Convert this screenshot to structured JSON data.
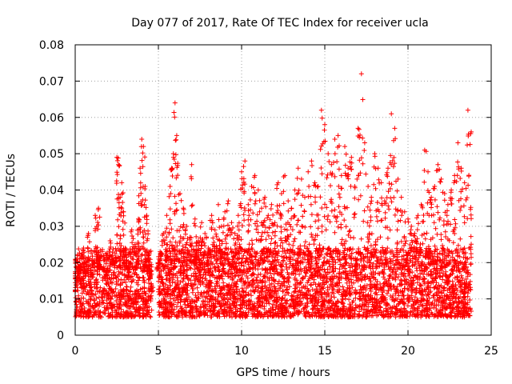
{
  "chart_data": {
    "type": "scatter",
    "title": "Day 077 of 2017, Rate Of TEC Index for receiver ucla",
    "xlabel": "GPS time / hours",
    "ylabel": "ROTI / TECUs",
    "xlim": [
      0,
      25
    ],
    "ylim": [
      0,
      0.08
    ],
    "xticks": [
      0,
      5,
      10,
      15,
      20,
      25
    ],
    "xtick_labels": [
      "0",
      "5",
      "10",
      "15",
      "20",
      "25"
    ],
    "yticks": [
      0,
      0.01,
      0.02,
      0.03,
      0.04,
      0.05,
      0.06,
      0.07,
      0.08
    ],
    "ytick_labels": [
      "0",
      "0.01",
      "0.02",
      "0.03",
      "0.04",
      "0.05",
      "0.06",
      "0.07",
      "0.08"
    ],
    "grid": true,
    "marker": "+",
    "color": "#ff0000",
    "series": [
      {
        "x": [
          0.0,
          0.1,
          0.2,
          0.3,
          0.4,
          0.5,
          0.6,
          0.8,
          1.0,
          1.2,
          1.4,
          1.5,
          1.7,
          1.9,
          2.1,
          2.3,
          2.5,
          2.6,
          2.7,
          2.8,
          2.9,
          3.0,
          3.2,
          3.4,
          3.6,
          3.8,
          3.9,
          4.0,
          4.1,
          4.2,
          4.3,
          4.4,
          4.5,
          4.6,
          5.0,
          5.1,
          5.3,
          5.5,
          5.7,
          5.8,
          5.9,
          6.0,
          6.1,
          6.3,
          6.5,
          6.7,
          6.9,
          7.0,
          7.2,
          7.4,
          7.6,
          7.8,
          8.0,
          8.2,
          8.4,
          8.6,
          8.8,
          9.0,
          9.2,
          9.4,
          9.6,
          9.8,
          10.0,
          10.2,
          10.4,
          10.6,
          10.8,
          11.0,
          11.2,
          11.4,
          11.6,
          11.8,
          12.0,
          12.2,
          12.4,
          12.6,
          12.8,
          13.0,
          13.2,
          13.4,
          13.6,
          13.8,
          14.0,
          14.2,
          14.4,
          14.6,
          14.8,
          15.0,
          15.2,
          15.4,
          15.6,
          15.8,
          16.0,
          16.2,
          16.4,
          16.6,
          16.8,
          17.0,
          17.2,
          17.4,
          17.6,
          17.8,
          18.0,
          18.2,
          18.4,
          18.6,
          18.8,
          19.0,
          19.2,
          19.4,
          19.6,
          19.8,
          20.0,
          20.2,
          20.4,
          20.6,
          20.8,
          21.0,
          21.2,
          21.4,
          21.6,
          21.8,
          22.0,
          22.2,
          22.4,
          22.6,
          22.8,
          23.0,
          23.2,
          23.4,
          23.6,
          23.8
        ],
        "y": [
          0.012,
          0.021,
          0.015,
          0.019,
          0.013,
          0.024,
          0.017,
          0.028,
          0.016,
          0.033,
          0.035,
          0.022,
          0.018,
          0.014,
          0.026,
          0.021,
          0.049,
          0.047,
          0.038,
          0.042,
          0.034,
          0.024,
          0.019,
          0.029,
          0.025,
          0.032,
          0.046,
          0.054,
          0.052,
          0.041,
          0.033,
          0.022,
          0.016,
          0.012,
          0.02,
          0.023,
          0.028,
          0.033,
          0.041,
          0.046,
          0.05,
          0.064,
          0.055,
          0.039,
          0.035,
          0.03,
          0.027,
          0.047,
          0.032,
          0.026,
          0.031,
          0.028,
          0.024,
          0.033,
          0.029,
          0.036,
          0.03,
          0.034,
          0.037,
          0.031,
          0.028,
          0.033,
          0.045,
          0.048,
          0.036,
          0.041,
          0.044,
          0.04,
          0.035,
          0.038,
          0.033,
          0.036,
          0.031,
          0.042,
          0.039,
          0.044,
          0.037,
          0.035,
          0.04,
          0.046,
          0.043,
          0.038,
          0.045,
          0.048,
          0.042,
          0.041,
          0.062,
          0.058,
          0.05,
          0.047,
          0.054,
          0.055,
          0.044,
          0.052,
          0.046,
          0.049,
          0.041,
          0.057,
          0.072,
          0.053,
          0.041,
          0.038,
          0.05,
          0.046,
          0.042,
          0.037,
          0.046,
          0.061,
          0.057,
          0.043,
          0.038,
          0.034,
          0.032,
          0.03,
          0.028,
          0.033,
          0.036,
          0.051,
          0.045,
          0.038,
          0.041,
          0.047,
          0.043,
          0.039,
          0.036,
          0.04,
          0.044,
          0.053,
          0.046,
          0.042,
          0.062,
          0.056
        ]
      }
    ],
    "baseline_band": {
      "segments": [
        [
          0.0,
          4.6
        ],
        [
          5.0,
          23.8
        ]
      ],
      "y_range": [
        0.005,
        0.024
      ]
    }
  }
}
